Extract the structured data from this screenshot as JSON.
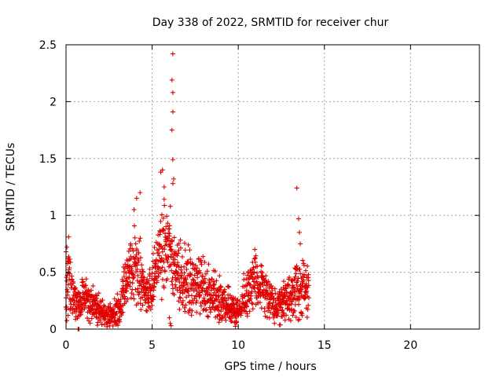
{
  "chart_data": {
    "type": "scatter",
    "title": "Day 338 of 2022, SRMTID for receiver chur",
    "xlabel": "GPS time / hours",
    "ylabel": "SRMTID / TECUs",
    "xlim": [
      0,
      24
    ],
    "ylim": [
      0,
      2.5
    ],
    "x_ticks": [
      0,
      5,
      10,
      15,
      20
    ],
    "x_tick_labels": [
      "0",
      "5",
      "10",
      "15",
      "20"
    ],
    "y_ticks": [
      0,
      0.5,
      1,
      1.5,
      2,
      2.5
    ],
    "y_tick_labels": [
      "0",
      "0.5",
      "1",
      "1.5",
      "2",
      "2.5"
    ],
    "grid": true,
    "marker": "plus",
    "color": "#e00000",
    "trend": [
      [
        0.0,
        0.3
      ],
      [
        0.15,
        0.5
      ],
      [
        0.3,
        0.35
      ],
      [
        0.5,
        0.22
      ],
      [
        0.8,
        0.2
      ],
      [
        1.0,
        0.28
      ],
      [
        1.5,
        0.22
      ],
      [
        2.0,
        0.15
      ],
      [
        2.5,
        0.12
      ],
      [
        3.0,
        0.14
      ],
      [
        3.3,
        0.28
      ],
      [
        3.7,
        0.5
      ],
      [
        4.0,
        0.55
      ],
      [
        4.3,
        0.48
      ],
      [
        4.6,
        0.3
      ],
      [
        5.0,
        0.35
      ],
      [
        5.3,
        0.55
      ],
      [
        5.7,
        0.75
      ],
      [
        6.0,
        0.7
      ],
      [
        6.3,
        0.55
      ],
      [
        6.7,
        0.48
      ],
      [
        7.0,
        0.45
      ],
      [
        7.5,
        0.38
      ],
      [
        8.0,
        0.35
      ],
      [
        8.5,
        0.3
      ],
      [
        9.0,
        0.24
      ],
      [
        9.5,
        0.2
      ],
      [
        9.9,
        0.15
      ],
      [
        10.2,
        0.22
      ],
      [
        10.6,
        0.35
      ],
      [
        11.0,
        0.42
      ],
      [
        11.4,
        0.4
      ],
      [
        11.8,
        0.3
      ],
      [
        12.1,
        0.18
      ],
      [
        12.5,
        0.22
      ],
      [
        13.0,
        0.3
      ],
      [
        13.4,
        0.35
      ],
      [
        13.8,
        0.38
      ],
      [
        14.1,
        0.32
      ]
    ],
    "outliers": [
      [
        0.0,
        0.68
      ],
      [
        0.05,
        0.72
      ],
      [
        0.1,
        0.62
      ],
      [
        0.7,
        0.0
      ],
      [
        0.75,
        0.0
      ],
      [
        0.12,
        0.12
      ],
      [
        4.1,
        1.15
      ],
      [
        4.3,
        1.2
      ],
      [
        3.95,
        1.05
      ],
      [
        5.6,
        1.4
      ],
      [
        5.5,
        1.38
      ],
      [
        5.7,
        1.25
      ],
      [
        6.2,
        2.42
      ],
      [
        6.15,
        2.19
      ],
      [
        6.2,
        2.08
      ],
      [
        6.2,
        1.91
      ],
      [
        6.15,
        1.75
      ],
      [
        6.2,
        1.49
      ],
      [
        6.25,
        1.32
      ],
      [
        6.2,
        1.28
      ],
      [
        6.05,
        0.05
      ],
      [
        6.1,
        0.03
      ],
      [
        6.0,
        0.1
      ],
      [
        13.4,
        1.24
      ],
      [
        13.5,
        0.97
      ],
      [
        13.55,
        0.85
      ],
      [
        13.6,
        0.75
      ]
    ]
  }
}
